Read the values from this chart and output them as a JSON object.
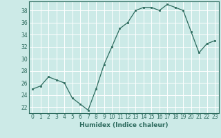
{
  "x": [
    0,
    1,
    2,
    3,
    4,
    5,
    6,
    7,
    8,
    9,
    10,
    11,
    12,
    13,
    14,
    15,
    16,
    17,
    18,
    19,
    20,
    21,
    22,
    23
  ],
  "y": [
    25.0,
    25.5,
    27.0,
    26.5,
    26.0,
    23.5,
    22.5,
    21.5,
    25.0,
    29.0,
    32.0,
    35.0,
    36.0,
    38.0,
    38.5,
    38.5,
    38.0,
    39.0,
    38.5,
    38.0,
    34.5,
    31.0,
    32.5,
    33.0
  ],
  "line_color": "#2d6b5e",
  "marker_color": "#2d6b5e",
  "bg_color": "#cceae7",
  "grid_color": "#ffffff",
  "spine_color": "#2d6b5e",
  "xlabel": "Humidex (Indice chaleur)",
  "xlim": [
    -0.5,
    23.5
  ],
  "ylim": [
    21.0,
    39.5
  ],
  "yticks": [
    22,
    24,
    26,
    28,
    30,
    32,
    34,
    36,
    38
  ],
  "xticks": [
    0,
    1,
    2,
    3,
    4,
    5,
    6,
    7,
    8,
    9,
    10,
    11,
    12,
    13,
    14,
    15,
    16,
    17,
    18,
    19,
    20,
    21,
    22,
    23
  ],
  "xlabel_fontsize": 6.5,
  "tick_fontsize": 5.5,
  "line_width": 0.9,
  "marker_size": 2.0
}
